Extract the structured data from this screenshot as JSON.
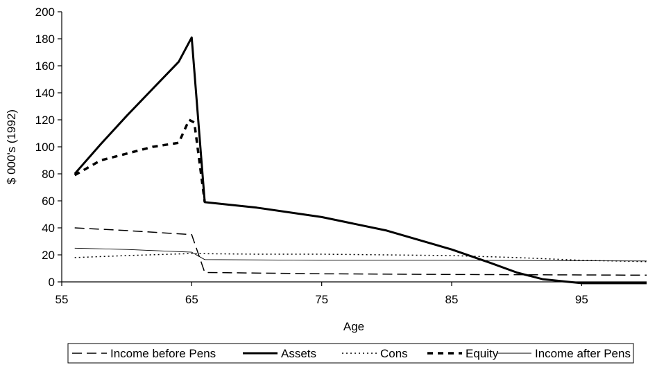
{
  "chart_data": {
    "type": "line",
    "xlabel": "Age",
    "ylabel": "$ 000's (1992)",
    "xlim": [
      55,
      100
    ],
    "ylim": [
      0,
      200
    ],
    "x_ticks": [
      55,
      65,
      75,
      85,
      95
    ],
    "y_ticks": [
      0,
      20,
      40,
      60,
      80,
      100,
      120,
      140,
      160,
      180,
      200
    ],
    "grid": false,
    "legend_position": "bottom",
    "series": [
      {
        "name": "Income before Pens",
        "style": "long-dash",
        "color": "#000000",
        "points": [
          [
            56,
            40
          ],
          [
            60,
            38
          ],
          [
            65,
            35
          ],
          [
            66,
            7
          ],
          [
            75,
            6
          ],
          [
            85,
            5.5
          ],
          [
            100,
            5
          ]
        ]
      },
      {
        "name": "Assets",
        "style": "thick-solid",
        "color": "#000000",
        "points": [
          [
            56,
            80
          ],
          [
            58,
            102
          ],
          [
            60,
            123
          ],
          [
            62,
            143
          ],
          [
            64,
            163
          ],
          [
            65,
            181
          ],
          [
            66,
            59
          ],
          [
            70,
            55
          ],
          [
            75,
            48
          ],
          [
            80,
            38
          ],
          [
            85,
            24
          ],
          [
            88,
            14
          ],
          [
            90,
            7
          ],
          [
            92,
            2
          ],
          [
            95,
            -1
          ],
          [
            100,
            -1
          ]
        ]
      },
      {
        "name": "Cons",
        "style": "dotted",
        "color": "#000000",
        "points": [
          [
            56,
            18
          ],
          [
            60,
            19.5
          ],
          [
            65,
            21
          ],
          [
            70,
            20.5
          ],
          [
            75,
            20.5
          ],
          [
            80,
            20
          ],
          [
            85,
            19.5
          ],
          [
            90,
            18
          ],
          [
            95,
            16
          ],
          [
            100,
            15
          ]
        ]
      },
      {
        "name": "Equity",
        "style": "thick-dash",
        "color": "#000000",
        "points": [
          [
            56,
            79
          ],
          [
            58,
            90
          ],
          [
            60,
            95
          ],
          [
            62,
            100
          ],
          [
            64,
            103
          ],
          [
            64.8,
            120
          ],
          [
            65.2,
            118
          ],
          [
            66,
            59
          ]
        ]
      },
      {
        "name": "Income after Pens",
        "style": "thin-solid",
        "color": "#000000",
        "points": [
          [
            56,
            25
          ],
          [
            60,
            24
          ],
          [
            65,
            22
          ],
          [
            66,
            16.5
          ],
          [
            75,
            16
          ],
          [
            85,
            16
          ],
          [
            100,
            15.5
          ]
        ]
      }
    ]
  }
}
